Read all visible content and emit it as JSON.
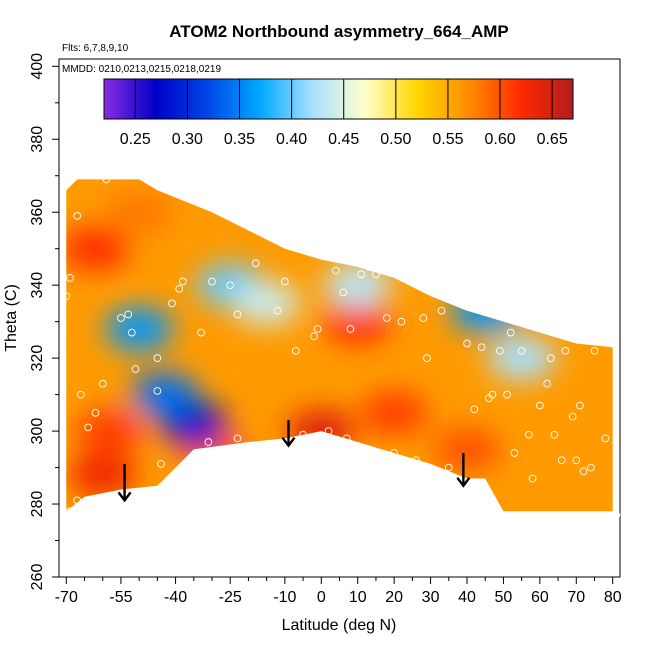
{
  "chart_data": {
    "type": "heatmap",
    "title": "ATOM2 Northbound asymmetry_664_AMP",
    "subtitle_flights": "Flts: 6,7,8,9,10",
    "subtitle_dates": "MMDD: 0210,0213,0215,0218,0219",
    "xlabel": "Latitude (deg N)",
    "ylabel": "Theta (C)",
    "xlim": [
      -72,
      82
    ],
    "ylim": [
      260,
      402
    ],
    "x_ticks": [
      -70,
      -55,
      -40,
      -25,
      -10,
      0,
      10,
      20,
      30,
      40,
      50,
      60,
      70,
      80
    ],
    "y_ticks": [
      260,
      280,
      300,
      320,
      340,
      360,
      380,
      400
    ],
    "colorbar": {
      "range": [
        0.22,
        0.67
      ],
      "ticks": [
        0.25,
        0.3,
        0.35,
        0.4,
        0.45,
        0.5,
        0.55,
        0.6,
        0.65
      ],
      "colors": [
        "#8a2be2",
        "#0000c8",
        "#0046e6",
        "#00aaff",
        "#a8e0ff",
        "#ffffcc",
        "#ffd700",
        "#ff8c00",
        "#ff2a00",
        "#b21c1c"
      ]
    },
    "field_region": {
      "top_boundary": [
        [
          -70,
          366
        ],
        [
          -67,
          369
        ],
        [
          -50,
          369
        ],
        [
          -45,
          366
        ],
        [
          -30,
          360
        ],
        [
          -10,
          350
        ],
        [
          0,
          347
        ],
        [
          10,
          345
        ],
        [
          20,
          342
        ],
        [
          30,
          337
        ],
        [
          40,
          333
        ],
        [
          50,
          330
        ],
        [
          60,
          327
        ],
        [
          70,
          324
        ],
        [
          80,
          323
        ]
      ],
      "bottom_boundary": [
        [
          -70,
          278
        ],
        [
          -65,
          282
        ],
        [
          -55,
          284
        ],
        [
          -45,
          285
        ],
        [
          -35,
          295
        ],
        [
          -20,
          297
        ],
        [
          -10,
          298
        ],
        [
          0,
          300
        ],
        [
          10,
          297
        ],
        [
          20,
          294
        ],
        [
          30,
          291
        ],
        [
          40,
          287
        ],
        [
          45,
          287
        ],
        [
          50,
          278
        ],
        [
          80,
          278
        ]
      ]
    },
    "warm_features": [
      {
        "lat": -62,
        "theta": 350,
        "value": 0.62
      },
      {
        "lat": -58,
        "theta": 300,
        "value": 0.61
      },
      {
        "lat": -60,
        "theta": 288,
        "value": 0.63
      },
      {
        "lat": -30,
        "theta": 295,
        "value": 0.6
      },
      {
        "lat": 0,
        "theta": 300,
        "value": 0.64
      },
      {
        "lat": 10,
        "theta": 330,
        "value": 0.62
      },
      {
        "lat": 20,
        "theta": 305,
        "value": 0.61
      },
      {
        "lat": 40,
        "theta": 295,
        "value": 0.6
      },
      {
        "lat": -50,
        "theta": 360,
        "value": 0.58
      }
    ],
    "cool_features": [
      {
        "lat": -35,
        "theta": 302,
        "value": 0.27
      },
      {
        "lat": -43,
        "theta": 310,
        "value": 0.34
      },
      {
        "lat": -50,
        "theta": 328,
        "value": 0.36
      },
      {
        "lat": -25,
        "theta": 340,
        "value": 0.4
      },
      {
        "lat": 10,
        "theta": 340,
        "value": 0.43
      },
      {
        "lat": 45,
        "theta": 333,
        "value": 0.36
      },
      {
        "lat": 55,
        "theta": 320,
        "value": 0.42
      },
      {
        "lat": -15,
        "theta": 335,
        "value": 0.44
      }
    ],
    "sample_points": [
      [
        -67,
        359
      ],
      [
        -69,
        342
      ],
      [
        -70,
        337
      ],
      [
        -66,
        310
      ],
      [
        -64,
        301
      ],
      [
        -62,
        305
      ],
      [
        -60,
        313
      ],
      [
        -67,
        281
      ],
      [
        -69,
        278
      ],
      [
        -59,
        369
      ],
      [
        -55,
        331
      ],
      [
        -53,
        332
      ],
      [
        -52,
        327
      ],
      [
        -51,
        317
      ],
      [
        -45,
        320
      ],
      [
        -45,
        311
      ],
      [
        -44,
        291
      ],
      [
        -41,
        335
      ],
      [
        -39,
        339
      ],
      [
        -38,
        341
      ],
      [
        -33,
        327
      ],
      [
        -31,
        297
      ],
      [
        -30,
        341
      ],
      [
        -25,
        340
      ],
      [
        -23,
        298
      ],
      [
        -23,
        332
      ],
      [
        -18,
        346
      ],
      [
        -12,
        333
      ],
      [
        -10,
        341
      ],
      [
        -7,
        322
      ],
      [
        -5,
        299
      ],
      [
        -2,
        326
      ],
      [
        -1,
        328
      ],
      [
        2,
        300
      ],
      [
        4,
        344
      ],
      [
        6,
        338
      ],
      [
        7,
        298
      ],
      [
        8,
        328
      ],
      [
        11,
        343
      ],
      [
        12,
        294
      ],
      [
        13,
        345
      ],
      [
        15,
        343
      ],
      [
        18,
        331
      ],
      [
        20,
        294
      ],
      [
        22,
        330
      ],
      [
        26,
        292
      ],
      [
        28,
        331
      ],
      [
        29,
        320
      ],
      [
        33,
        333
      ],
      [
        35,
        290
      ],
      [
        38,
        335
      ],
      [
        40,
        324
      ],
      [
        42,
        306
      ],
      [
        44,
        323
      ],
      [
        46,
        309
      ],
      [
        47,
        310
      ],
      [
        49,
        322
      ],
      [
        51,
        310
      ],
      [
        52,
        327
      ],
      [
        53,
        294
      ],
      [
        55,
        322
      ],
      [
        57,
        299
      ],
      [
        58,
        287
      ],
      [
        60,
        307
      ],
      [
        62,
        313
      ],
      [
        63,
        320
      ],
      [
        64,
        299
      ],
      [
        66,
        292
      ],
      [
        67,
        322
      ],
      [
        69,
        304
      ],
      [
        70,
        292
      ],
      [
        71,
        307
      ],
      [
        72,
        289
      ],
      [
        74,
        290
      ],
      [
        75,
        322
      ],
      [
        78,
        298
      ],
      [
        80,
        324
      ],
      [
        81,
        277
      ]
    ],
    "arrows": [
      {
        "lat": -54,
        "theta_from": 291,
        "theta_to": 281
      },
      {
        "lat": -9,
        "theta_from": 303,
        "theta_to": 296
      },
      {
        "lat": 39,
        "theta_from": 294,
        "theta_to": 285
      }
    ]
  }
}
